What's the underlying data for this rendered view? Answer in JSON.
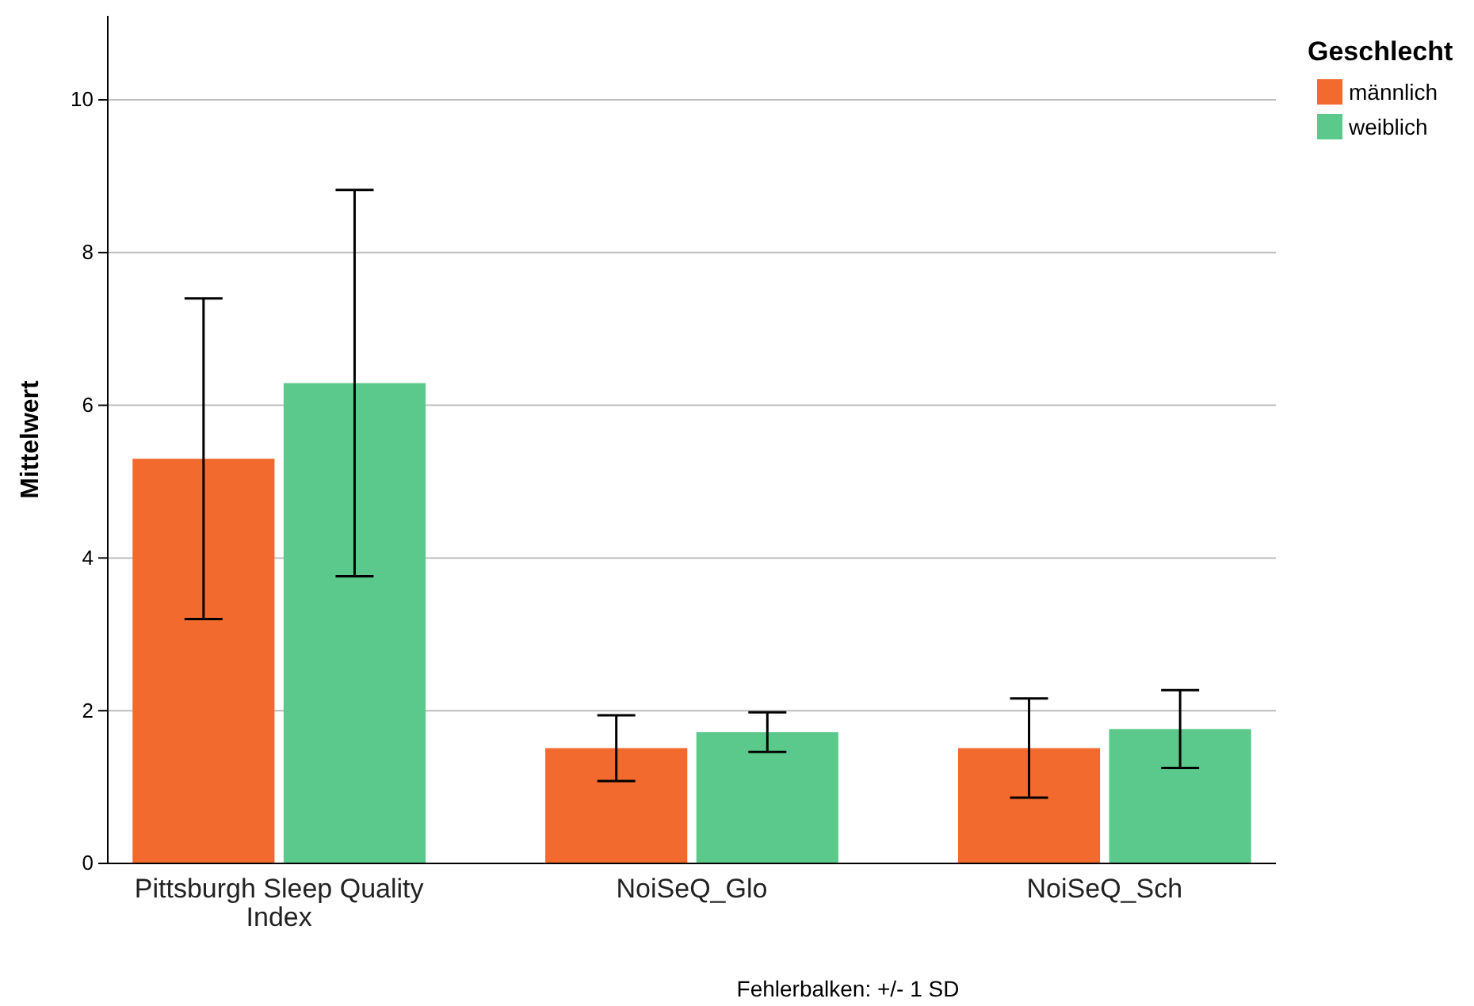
{
  "chart_data": {
    "type": "bar",
    "ylabel": "Mittelwert",
    "legend_title": "Geschlecht",
    "categories": [
      "Pittsburgh Sleep Quality Index",
      "NoiSeQ_Glo",
      "NoiSeQ_Sch"
    ],
    "series": [
      {
        "name": "männlich",
        "color": "#f26a2e",
        "values": [
          5.3,
          1.51,
          1.51
        ],
        "errors": [
          2.1,
          0.43,
          0.65
        ]
      },
      {
        "name": "weiblich",
        "color": "#5bc98b",
        "values": [
          6.29,
          1.72,
          1.76
        ],
        "errors": [
          2.53,
          0.26,
          0.51
        ]
      }
    ],
    "ylim": [
      0,
      11.1
    ],
    "yticks": [
      0,
      2,
      4,
      6,
      8,
      10
    ],
    "grid": "y",
    "legend": "top right",
    "annotations": [
      "Fehlerbalken: +/- 1 SD"
    ]
  }
}
